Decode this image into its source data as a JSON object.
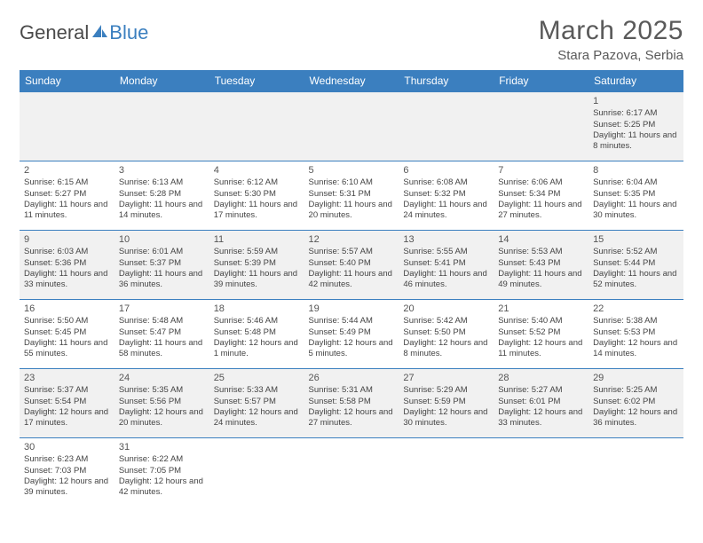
{
  "logo": {
    "text1": "General",
    "text2": "Blue"
  },
  "header": {
    "title": "March 2025",
    "location": "Stara Pazova, Serbia"
  },
  "colors": {
    "header_bg": "#3b7fbf",
    "header_text": "#ffffff",
    "row_alt_bg": "#f1f1f1",
    "border": "#3b7fbf",
    "text": "#444444",
    "title_text": "#5a5a5a"
  },
  "dayNames": [
    "Sunday",
    "Monday",
    "Tuesday",
    "Wednesday",
    "Thursday",
    "Friday",
    "Saturday"
  ],
  "weeks": [
    [
      null,
      null,
      null,
      null,
      null,
      null,
      {
        "n": "1",
        "sr": "Sunrise: 6:17 AM",
        "ss": "Sunset: 5:25 PM",
        "dl": "Daylight: 11 hours and 8 minutes."
      }
    ],
    [
      {
        "n": "2",
        "sr": "Sunrise: 6:15 AM",
        "ss": "Sunset: 5:27 PM",
        "dl": "Daylight: 11 hours and 11 minutes."
      },
      {
        "n": "3",
        "sr": "Sunrise: 6:13 AM",
        "ss": "Sunset: 5:28 PM",
        "dl": "Daylight: 11 hours and 14 minutes."
      },
      {
        "n": "4",
        "sr": "Sunrise: 6:12 AM",
        "ss": "Sunset: 5:30 PM",
        "dl": "Daylight: 11 hours and 17 minutes."
      },
      {
        "n": "5",
        "sr": "Sunrise: 6:10 AM",
        "ss": "Sunset: 5:31 PM",
        "dl": "Daylight: 11 hours and 20 minutes."
      },
      {
        "n": "6",
        "sr": "Sunrise: 6:08 AM",
        "ss": "Sunset: 5:32 PM",
        "dl": "Daylight: 11 hours and 24 minutes."
      },
      {
        "n": "7",
        "sr": "Sunrise: 6:06 AM",
        "ss": "Sunset: 5:34 PM",
        "dl": "Daylight: 11 hours and 27 minutes."
      },
      {
        "n": "8",
        "sr": "Sunrise: 6:04 AM",
        "ss": "Sunset: 5:35 PM",
        "dl": "Daylight: 11 hours and 30 minutes."
      }
    ],
    [
      {
        "n": "9",
        "sr": "Sunrise: 6:03 AM",
        "ss": "Sunset: 5:36 PM",
        "dl": "Daylight: 11 hours and 33 minutes."
      },
      {
        "n": "10",
        "sr": "Sunrise: 6:01 AM",
        "ss": "Sunset: 5:37 PM",
        "dl": "Daylight: 11 hours and 36 minutes."
      },
      {
        "n": "11",
        "sr": "Sunrise: 5:59 AM",
        "ss": "Sunset: 5:39 PM",
        "dl": "Daylight: 11 hours and 39 minutes."
      },
      {
        "n": "12",
        "sr": "Sunrise: 5:57 AM",
        "ss": "Sunset: 5:40 PM",
        "dl": "Daylight: 11 hours and 42 minutes."
      },
      {
        "n": "13",
        "sr": "Sunrise: 5:55 AM",
        "ss": "Sunset: 5:41 PM",
        "dl": "Daylight: 11 hours and 46 minutes."
      },
      {
        "n": "14",
        "sr": "Sunrise: 5:53 AM",
        "ss": "Sunset: 5:43 PM",
        "dl": "Daylight: 11 hours and 49 minutes."
      },
      {
        "n": "15",
        "sr": "Sunrise: 5:52 AM",
        "ss": "Sunset: 5:44 PM",
        "dl": "Daylight: 11 hours and 52 minutes."
      }
    ],
    [
      {
        "n": "16",
        "sr": "Sunrise: 5:50 AM",
        "ss": "Sunset: 5:45 PM",
        "dl": "Daylight: 11 hours and 55 minutes."
      },
      {
        "n": "17",
        "sr": "Sunrise: 5:48 AM",
        "ss": "Sunset: 5:47 PM",
        "dl": "Daylight: 11 hours and 58 minutes."
      },
      {
        "n": "18",
        "sr": "Sunrise: 5:46 AM",
        "ss": "Sunset: 5:48 PM",
        "dl": "Daylight: 12 hours and 1 minute."
      },
      {
        "n": "19",
        "sr": "Sunrise: 5:44 AM",
        "ss": "Sunset: 5:49 PM",
        "dl": "Daylight: 12 hours and 5 minutes."
      },
      {
        "n": "20",
        "sr": "Sunrise: 5:42 AM",
        "ss": "Sunset: 5:50 PM",
        "dl": "Daylight: 12 hours and 8 minutes."
      },
      {
        "n": "21",
        "sr": "Sunrise: 5:40 AM",
        "ss": "Sunset: 5:52 PM",
        "dl": "Daylight: 12 hours and 11 minutes."
      },
      {
        "n": "22",
        "sr": "Sunrise: 5:38 AM",
        "ss": "Sunset: 5:53 PM",
        "dl": "Daylight: 12 hours and 14 minutes."
      }
    ],
    [
      {
        "n": "23",
        "sr": "Sunrise: 5:37 AM",
        "ss": "Sunset: 5:54 PM",
        "dl": "Daylight: 12 hours and 17 minutes."
      },
      {
        "n": "24",
        "sr": "Sunrise: 5:35 AM",
        "ss": "Sunset: 5:56 PM",
        "dl": "Daylight: 12 hours and 20 minutes."
      },
      {
        "n": "25",
        "sr": "Sunrise: 5:33 AM",
        "ss": "Sunset: 5:57 PM",
        "dl": "Daylight: 12 hours and 24 minutes."
      },
      {
        "n": "26",
        "sr": "Sunrise: 5:31 AM",
        "ss": "Sunset: 5:58 PM",
        "dl": "Daylight: 12 hours and 27 minutes."
      },
      {
        "n": "27",
        "sr": "Sunrise: 5:29 AM",
        "ss": "Sunset: 5:59 PM",
        "dl": "Daylight: 12 hours and 30 minutes."
      },
      {
        "n": "28",
        "sr": "Sunrise: 5:27 AM",
        "ss": "Sunset: 6:01 PM",
        "dl": "Daylight: 12 hours and 33 minutes."
      },
      {
        "n": "29",
        "sr": "Sunrise: 5:25 AM",
        "ss": "Sunset: 6:02 PM",
        "dl": "Daylight: 12 hours and 36 minutes."
      }
    ],
    [
      {
        "n": "30",
        "sr": "Sunrise: 6:23 AM",
        "ss": "Sunset: 7:03 PM",
        "dl": "Daylight: 12 hours and 39 minutes."
      },
      {
        "n": "31",
        "sr": "Sunrise: 6:22 AM",
        "ss": "Sunset: 7:05 PM",
        "dl": "Daylight: 12 hours and 42 minutes."
      },
      null,
      null,
      null,
      null,
      null
    ]
  ]
}
